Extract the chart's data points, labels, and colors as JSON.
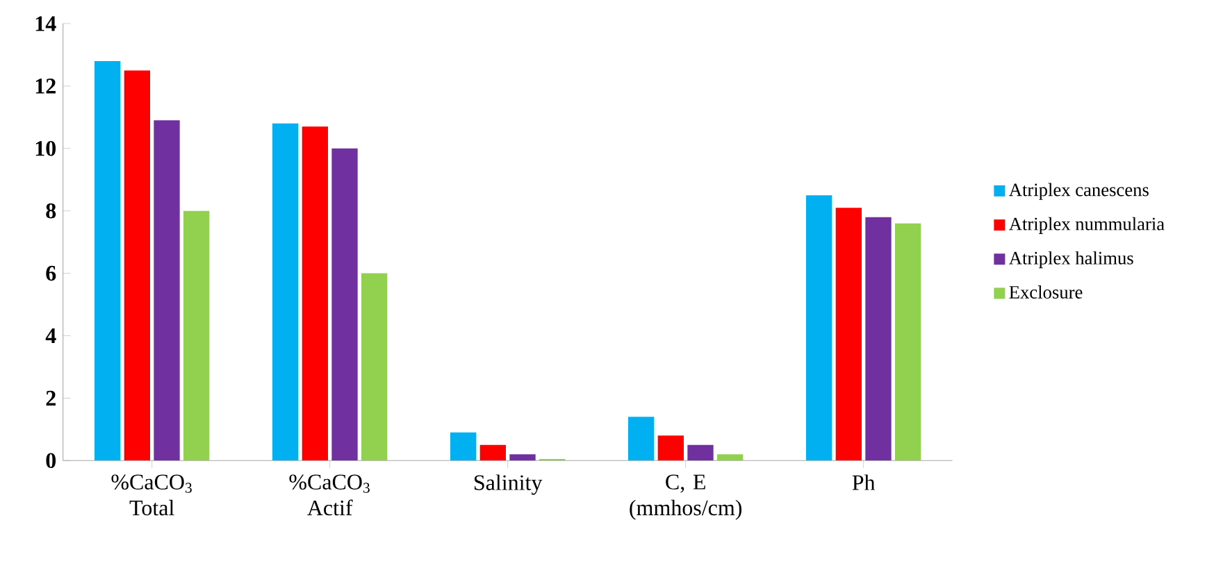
{
  "chart_data": {
    "type": "bar",
    "categories": [
      "%CaCO$_{3}$ Total",
      "%CaCO$_{3}$ Actif",
      "Salinity",
      "C, E (mmhos/cm)",
      "Ph"
    ],
    "series": [
      {
        "name": "Atriplex canescens",
        "color": "#00b0f0",
        "values": [
          12.8,
          10.8,
          0.9,
          1.4,
          8.5
        ]
      },
      {
        "name": "Atriplex nummularia",
        "color": "#ff0000",
        "values": [
          12.5,
          10.7,
          0.5,
          0.8,
          8.1
        ]
      },
      {
        "name": "Atriplex halimus",
        "color": "#7030a0",
        "values": [
          10.9,
          10.0,
          0.2,
          0.5,
          7.8
        ]
      },
      {
        "name": "Exclosure",
        "color": "#92d050",
        "values": [
          8.0,
          6.0,
          0.05,
          0.2,
          7.6
        ]
      }
    ],
    "ylim": [
      0,
      14
    ],
    "yticks": [
      0,
      2,
      4,
      6,
      8,
      10,
      12,
      14
    ],
    "legend": "right"
  }
}
